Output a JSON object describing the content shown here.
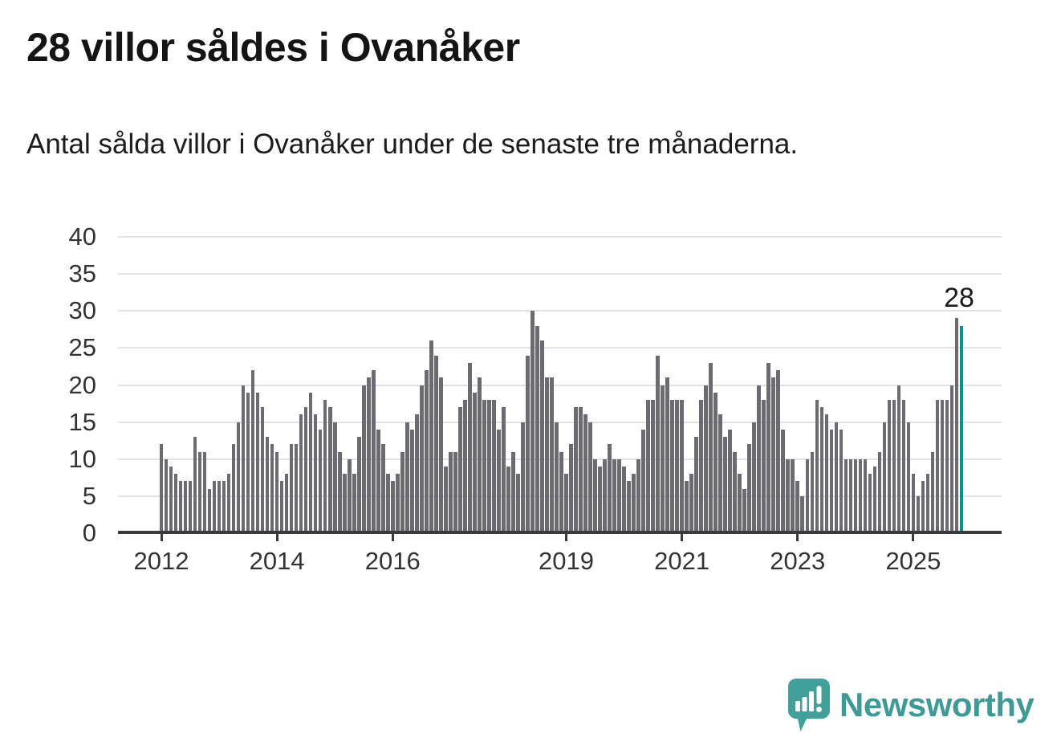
{
  "header": {
    "title": "28 villor såldes i Ovanåker",
    "subtitle": "Antal sålda villor i Ovanåker under de senaste tre månaderna."
  },
  "chart_data": {
    "type": "bar",
    "title": "28 villor såldes i Ovanåker",
    "subtitle": "Antal sålda villor i Ovanåker under de senaste tre månaderna.",
    "xlabel": "",
    "ylabel": "",
    "ylim": [
      0,
      40
    ],
    "grid": true,
    "y_ticks": [
      0,
      5,
      10,
      15,
      20,
      25,
      30,
      35,
      40
    ],
    "x_tick_years": [
      2012,
      2014,
      2016,
      2019,
      2021,
      2023,
      2025
    ],
    "start_year": 2012,
    "start_month": 1,
    "frequency": "monthly",
    "values": [
      12,
      10,
      9,
      8,
      7,
      7,
      7,
      13,
      11,
      11,
      6,
      7,
      7,
      7,
      8,
      12,
      15,
      20,
      19,
      22,
      19,
      17,
      13,
      12,
      11,
      7,
      8,
      12,
      12,
      16,
      17,
      19,
      16,
      14,
      18,
      17,
      15,
      11,
      8,
      10,
      8,
      13,
      20,
      21,
      22,
      14,
      12,
      8,
      7,
      8,
      11,
      15,
      14,
      16,
      20,
      22,
      26,
      24,
      21,
      9,
      11,
      11,
      17,
      18,
      23,
      19,
      21,
      18,
      18,
      18,
      14,
      17,
      9,
      11,
      8,
      15,
      24,
      30,
      28,
      26,
      21,
      21,
      15,
      11,
      8,
      12,
      17,
      17,
      16,
      15,
      10,
      9,
      10,
      12,
      10,
      10,
      9,
      7,
      8,
      10,
      14,
      18,
      18,
      24,
      20,
      21,
      18,
      18,
      18,
      7,
      8,
      13,
      18,
      20,
      23,
      19,
      16,
      13,
      14,
      11,
      8,
      6,
      12,
      15,
      20,
      18,
      23,
      21,
      22,
      14,
      10,
      10,
      7,
      5,
      10,
      11,
      18,
      17,
      16,
      14,
      15,
      14,
      10,
      10,
      10,
      10,
      10,
      8,
      9,
      11,
      15,
      18,
      18,
      20,
      18,
      15,
      8,
      5,
      7,
      8,
      11,
      18,
      18,
      18,
      20,
      29,
      28
    ],
    "highlight_last": true,
    "annotation": {
      "label": "28"
    },
    "colors": {
      "bar": "#6b6b71",
      "highlight": "#00968f",
      "grid": "#e2e2e4",
      "axis": "#3a3a3c",
      "tick_text": "#333333",
      "title_text": "#141414"
    }
  },
  "footer": {
    "brand": "Newsworthy",
    "brand_color": "#3d9b96",
    "icon_color": "#42a09a",
    "icon": "newsworthy-speech-bubble-bar-chart-icon"
  }
}
